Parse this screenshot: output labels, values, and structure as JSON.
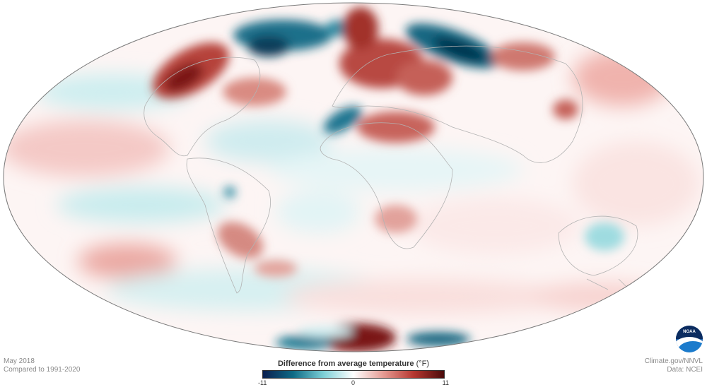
{
  "map": {
    "projection": "Mollweide",
    "colors": {
      "outline": "#7a7a7a",
      "land_border": "#b3b3b3",
      "neutral": "#ffffff",
      "warm_light": "#f6d3d0",
      "warm_mid": "#d9857c",
      "warm_dark": "#8f1f1c",
      "cool_light": "#cdecee",
      "cool_mid": "#6ec6cf",
      "cool_dark": "#0b5f78"
    }
  },
  "caption": {
    "date": "May 2018",
    "baseline": "Compared to 1991-2020"
  },
  "credits": {
    "site": "Climate.gov/NNVL",
    "data": "Data: NCEI"
  },
  "legend": {
    "title": "Difference from average temperature",
    "unit": "(°F)",
    "min_label": "-11",
    "mid_label": "0",
    "max_label": "11",
    "gradient": [
      "#0b1f4f",
      "#0e6a85",
      "#7ccfd6",
      "#ffffff",
      "#e59a92",
      "#b5362f",
      "#4a0a0a"
    ]
  },
  "logo": {
    "text": "NOAA"
  }
}
